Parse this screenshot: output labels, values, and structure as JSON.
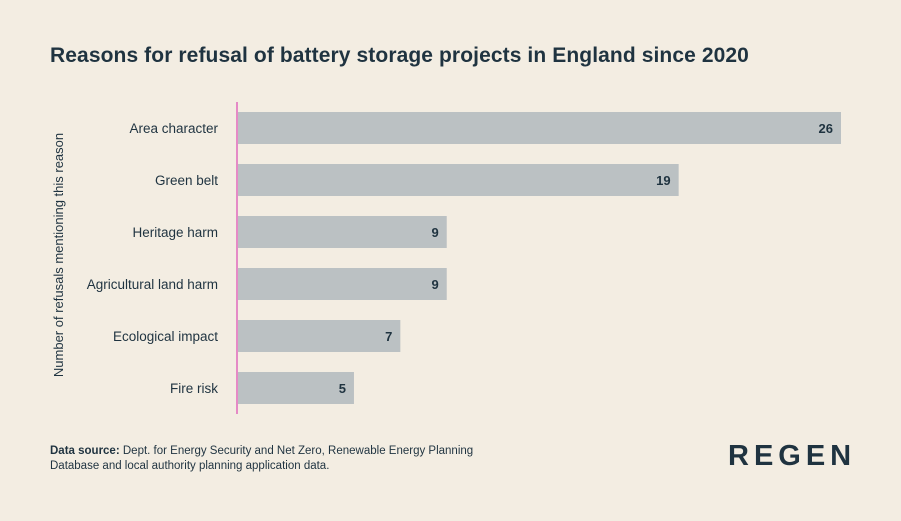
{
  "chart_data": {
    "type": "bar",
    "orientation": "horizontal",
    "title": "Reasons for refusal of battery storage projects in England since 2020",
    "ylabel": "Number of refusals mentioning this reason",
    "categories": [
      "Area character",
      "Green belt",
      "Heritage harm",
      "Agricultural land harm",
      "Ecological impact",
      "Fire risk"
    ],
    "values": [
      26,
      19,
      9,
      9,
      7,
      5
    ],
    "xlim": [
      0,
      26
    ],
    "grid": false,
    "data_labels": true,
    "colors": {
      "bar": "#bbc1c3",
      "axis": "#e58ac6",
      "text": "#1f3340",
      "background": "#f3ede2"
    }
  },
  "footer": {
    "source_label": "Data source:",
    "source_text": "Dept. for Energy Security and Net Zero, Renewable Energy Planning Database and local authority planning application data."
  },
  "logo": {
    "text": "REGEN"
  }
}
